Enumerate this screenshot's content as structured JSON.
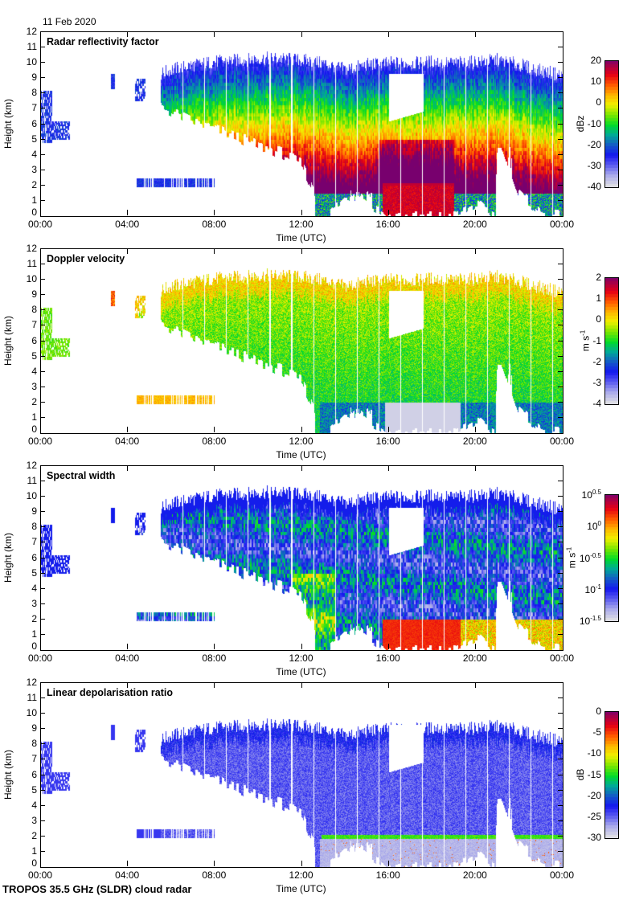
{
  "header": {
    "date": "11 Feb 2020"
  },
  "footer": {
    "instrument": "TROPOS 35.5 GHz (SLDR) cloud radar"
  },
  "chart_data": [
    {
      "type": "heatmap",
      "id": "reflectivity",
      "title": "Radar reflectivity factor",
      "xlabel": "Time (UTC)",
      "ylabel": "Height (km)",
      "xticks": [
        "00:00",
        "04:00",
        "08:00",
        "12:00",
        "16:00",
        "20:00",
        "00:00"
      ],
      "yticks": [
        "0",
        "1",
        "2",
        "3",
        "4",
        "5",
        "6",
        "7",
        "8",
        "9",
        "10",
        "11",
        "12"
      ],
      "xlim_hours": [
        0,
        24
      ],
      "ylim_km": [
        0,
        12
      ],
      "colorbar": {
        "unit": "dBz",
        "unit_sup": "",
        "min": -40,
        "max": 20,
        "ticks": [
          {
            "base": "20",
            "sup": ""
          },
          {
            "base": "10",
            "sup": ""
          },
          {
            "base": "0",
            "sup": ""
          },
          {
            "base": "-10",
            "sup": ""
          },
          {
            "base": "-20",
            "sup": ""
          },
          {
            "base": "-30",
            "sup": ""
          },
          {
            "base": "-40",
            "sup": ""
          }
        ]
      },
      "field": "ze"
    },
    {
      "type": "heatmap",
      "id": "doppler",
      "title": "Doppler velocity",
      "xlabel": "Time (UTC)",
      "ylabel": "Height (km)",
      "xticks": [
        "00:00",
        "04:00",
        "08:00",
        "12:00",
        "16:00",
        "20:00",
        "00:00"
      ],
      "yticks": [
        "0",
        "1",
        "2",
        "3",
        "4",
        "5",
        "6",
        "7",
        "8",
        "9",
        "10",
        "11",
        "12"
      ],
      "xlim_hours": [
        0,
        24
      ],
      "ylim_km": [
        0,
        12
      ],
      "colorbar": {
        "unit": "m s",
        "unit_sup": "-1",
        "min": -4,
        "max": 2,
        "ticks": [
          {
            "base": "2",
            "sup": ""
          },
          {
            "base": "1",
            "sup": ""
          },
          {
            "base": "0",
            "sup": ""
          },
          {
            "base": "-1",
            "sup": ""
          },
          {
            "base": "-2",
            "sup": ""
          },
          {
            "base": "-3",
            "sup": ""
          },
          {
            "base": "-4",
            "sup": ""
          }
        ]
      },
      "field": "vel"
    },
    {
      "type": "heatmap",
      "id": "spectral-width",
      "title": "Spectral width",
      "xlabel": "Time (UTC)",
      "ylabel": "Height (km)",
      "xticks": [
        "00:00",
        "04:00",
        "08:00",
        "12:00",
        "16:00",
        "20:00",
        "00:00"
      ],
      "yticks": [
        "0",
        "1",
        "2",
        "3",
        "4",
        "5",
        "6",
        "7",
        "8",
        "9",
        "10",
        "11",
        "12"
      ],
      "xlim_hours": [
        0,
        24
      ],
      "ylim_km": [
        0,
        12
      ],
      "colorbar": {
        "unit": "m s",
        "unit_sup": "-1",
        "min": -1.5,
        "max": 0.5,
        "scale": "log10",
        "ticks": [
          {
            "base": "10",
            "sup": "0.5"
          },
          {
            "base": "10",
            "sup": "0"
          },
          {
            "base": "10",
            "sup": "-0.5"
          },
          {
            "base": "10",
            "sup": "-1"
          },
          {
            "base": "10",
            "sup": "-1.5"
          }
        ]
      },
      "field": "width"
    },
    {
      "type": "heatmap",
      "id": "ldr",
      "title": "Linear depolarisation ratio",
      "xlabel": "Time (UTC)",
      "ylabel": "Height (km)",
      "xticks": [
        "00:00",
        "04:00",
        "08:00",
        "12:00",
        "16:00",
        "20:00",
        "00:00"
      ],
      "yticks": [
        "0",
        "1",
        "2",
        "3",
        "4",
        "5",
        "6",
        "7",
        "8",
        "9",
        "10",
        "11",
        "12"
      ],
      "xlim_hours": [
        0,
        24
      ],
      "ylim_km": [
        0,
        12
      ],
      "colorbar": {
        "unit": "dB",
        "unit_sup": "",
        "min": -30,
        "max": 0,
        "ticks": [
          {
            "base": "0",
            "sup": ""
          },
          {
            "base": "-5",
            "sup": ""
          },
          {
            "base": "-10",
            "sup": ""
          },
          {
            "base": "-15",
            "sup": ""
          },
          {
            "base": "-20",
            "sup": ""
          },
          {
            "base": "-25",
            "sup": ""
          },
          {
            "base": "-30",
            "sup": ""
          }
        ]
      },
      "field": "ldr"
    }
  ],
  "cloud_envelope": {
    "hours": [
      0.0,
      1.2,
      3.2,
      4.5,
      5.5,
      6.0,
      7.0,
      8.0,
      9.0,
      10.0,
      11.0,
      12.0,
      13.0,
      14.0,
      15.0,
      16.0,
      17.0,
      18.0,
      19.0,
      20.0,
      21.0,
      22.0,
      23.0,
      24.0
    ],
    "top_km": [
      0.0,
      0.0,
      0.0,
      8.8,
      9.3,
      9.6,
      9.9,
      10.1,
      10.2,
      10.3,
      10.3,
      10.2,
      10.0,
      9.6,
      9.9,
      10.0,
      10.0,
      10.1,
      10.0,
      10.1,
      10.2,
      9.9,
      9.5,
      9.2
    ],
    "base_km": [
      0.0,
      0.0,
      0.0,
      7.8,
      7.2,
      6.8,
      6.2,
      5.7,
      5.2,
      4.6,
      4.2,
      3.4,
      0.0,
      1.2,
      0.8,
      0.0,
      0.0,
      0.0,
      0.0,
      0.8,
      0.0,
      1.5,
      0.2,
      0.0
    ],
    "melting_layer_km": 2.0,
    "stripe_interval_hours": 1.0,
    "stripe_start_hours": 6.5
  }
}
